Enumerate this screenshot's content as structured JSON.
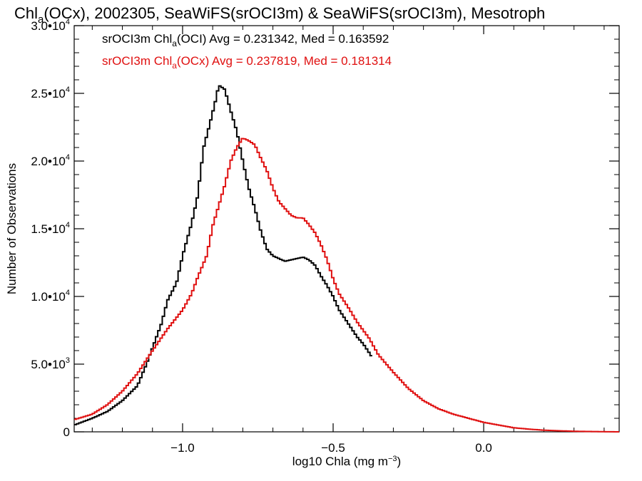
{
  "chart_data": {
    "type": "line",
    "title": "Chla(OCx), 2002305, SeaWiFS(srOCI3m) & SeaWiFS(srOCI3m), Mesotroph",
    "title_parts": {
      "pre": "Chl",
      "sub": "a",
      "post": "(OCx), 2002305, SeaWiFS(srOCI3m) & SeaWiFS(srOCI3m), Mesotroph"
    },
    "xlabel": "log10 Chla (mg m⁻³)",
    "xlabel_parts": {
      "pre": "log10 Chla (mg m",
      "sup": "−3",
      "post": ")"
    },
    "ylabel": "Number of Observations",
    "xlim": [
      -1.36,
      0.45
    ],
    "ylim": [
      0,
      30000
    ],
    "x_ticks": [
      {
        "value": -1.0,
        "label": "−1.0"
      },
      {
        "value": -0.5,
        "label": "−0.5"
      },
      {
        "value": 0.0,
        "label": "0.0"
      }
    ],
    "y_ticks": [
      {
        "value": 0,
        "mantissa": "0",
        "exp": ""
      },
      {
        "value": 5000,
        "mantissa": "5.0•10",
        "exp": "3"
      },
      {
        "value": 10000,
        "mantissa": "1.0•10",
        "exp": "4"
      },
      {
        "value": 15000,
        "mantissa": "1.5•10",
        "exp": "4"
      },
      {
        "value": 20000,
        "mantissa": "2.0•10",
        "exp": "4"
      },
      {
        "value": 25000,
        "mantissa": "2.5•10",
        "exp": "4"
      },
      {
        "value": 30000,
        "mantissa": "3.0•10",
        "exp": "4"
      }
    ],
    "legend_placement": "top-left",
    "grid": false,
    "step_style": true,
    "series": [
      {
        "legend_pre": "srOCI3m Chl",
        "legend_sub": "a",
        "legend_post": "(OCI) Avg = 0.231342, Med = 0.163592",
        "color": "#000000",
        "points": [
          [
            -1.36,
            500
          ],
          [
            -1.3,
            1000
          ],
          [
            -1.25,
            1500
          ],
          [
            -1.2,
            2300
          ],
          [
            -1.15,
            3400
          ],
          [
            -1.12,
            5000
          ],
          [
            -1.1,
            6200
          ],
          [
            -1.07,
            8000
          ],
          [
            -1.05,
            9700
          ],
          [
            -1.02,
            11000
          ],
          [
            -1.0,
            13000
          ],
          [
            -0.97,
            15400
          ],
          [
            -0.95,
            17400
          ],
          [
            -0.93,
            21000
          ],
          [
            -0.91,
            22700
          ],
          [
            -0.89,
            24500
          ],
          [
            -0.88,
            25600
          ],
          [
            -0.86,
            25300
          ],
          [
            -0.84,
            23700
          ],
          [
            -0.82,
            22200
          ],
          [
            -0.8,
            20000
          ],
          [
            -0.78,
            18000
          ],
          [
            -0.76,
            16500
          ],
          [
            -0.74,
            14800
          ],
          [
            -0.72,
            13500
          ],
          [
            -0.7,
            13000
          ],
          [
            -0.68,
            12800
          ],
          [
            -0.66,
            12600
          ],
          [
            -0.64,
            12700
          ],
          [
            -0.62,
            12800
          ],
          [
            -0.6,
            12900
          ],
          [
            -0.58,
            12700
          ],
          [
            -0.56,
            12300
          ],
          [
            -0.54,
            11500
          ],
          [
            -0.52,
            10800
          ],
          [
            -0.5,
            10000
          ],
          [
            -0.48,
            9000
          ],
          [
            -0.45,
            8000
          ],
          [
            -0.42,
            7000
          ],
          [
            -0.4,
            6500
          ],
          [
            -0.37,
            5500
          ]
        ]
      },
      {
        "legend_pre": "srOCI3m Chl",
        "legend_sub": "a",
        "legend_post": "(OCx) Avg = 0.237819, Med = 0.181314",
        "color": "#e01010",
        "points": [
          [
            -1.36,
            900
          ],
          [
            -1.3,
            1300
          ],
          [
            -1.25,
            2000
          ],
          [
            -1.2,
            3000
          ],
          [
            -1.15,
            4300
          ],
          [
            -1.1,
            6000
          ],
          [
            -1.05,
            7600
          ],
          [
            -1.0,
            9000
          ],
          [
            -0.97,
            10200
          ],
          [
            -0.95,
            11400
          ],
          [
            -0.92,
            13000
          ],
          [
            -0.9,
            15200
          ],
          [
            -0.88,
            16700
          ],
          [
            -0.86,
            18200
          ],
          [
            -0.84,
            20000
          ],
          [
            -0.82,
            21000
          ],
          [
            -0.8,
            21700
          ],
          [
            -0.78,
            21500
          ],
          [
            -0.76,
            21200
          ],
          [
            -0.74,
            20200
          ],
          [
            -0.72,
            19300
          ],
          [
            -0.7,
            18000
          ],
          [
            -0.68,
            17000
          ],
          [
            -0.66,
            16500
          ],
          [
            -0.64,
            16000
          ],
          [
            -0.62,
            15800
          ],
          [
            -0.6,
            15800
          ],
          [
            -0.58,
            15300
          ],
          [
            -0.56,
            14700
          ],
          [
            -0.54,
            13800
          ],
          [
            -0.52,
            12700
          ],
          [
            -0.5,
            11300
          ],
          [
            -0.48,
            10200
          ],
          [
            -0.45,
            9200
          ],
          [
            -0.42,
            8100
          ],
          [
            -0.38,
            6900
          ],
          [
            -0.35,
            5700
          ],
          [
            -0.3,
            4400
          ],
          [
            -0.25,
            3200
          ],
          [
            -0.2,
            2300
          ],
          [
            -0.15,
            1700
          ],
          [
            -0.1,
            1300
          ],
          [
            -0.05,
            1000
          ],
          [
            0.0,
            700
          ],
          [
            0.05,
            500
          ],
          [
            0.1,
            300
          ],
          [
            0.15,
            200
          ],
          [
            0.2,
            120
          ],
          [
            0.3,
            40
          ],
          [
            0.4,
            10
          ],
          [
            0.45,
            0
          ]
        ]
      }
    ]
  }
}
